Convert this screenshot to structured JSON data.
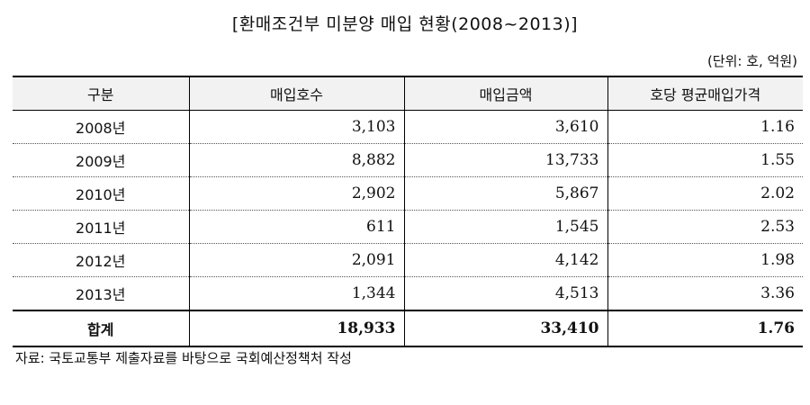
{
  "title": "[환매조건부 미분양 매입 현황(2008~2013)]",
  "unit": "(단위: 호, 억원)",
  "headers": [
    "구분",
    "매입호수",
    "매입금액",
    "호당 평균매입가격"
  ],
  "rows": [
    {
      "year": "2008년",
      "units": "3,103",
      "amount": "3,610",
      "avg": "1.16"
    },
    {
      "year": "2009년",
      "units": "8,882",
      "amount": "13,733",
      "avg": "1.55"
    },
    {
      "year": "2010년",
      "units": "2,902",
      "amount": "5,867",
      "avg": "2.02"
    },
    {
      "year": "2011년",
      "units": "611",
      "amount": "1,545",
      "avg": "2.53"
    },
    {
      "year": "2012년",
      "units": "2,091",
      "amount": "4,142",
      "avg": "1.98"
    },
    {
      "year": "2013년",
      "units": "1,344",
      "amount": "4,513",
      "avg": "3.36"
    }
  ],
  "total": {
    "label": "합계",
    "units": "18,933",
    "amount": "33,410",
    "avg": "1.76"
  },
  "source": "자료: 국토교통부 제출자료를 바탕으로 국회예산정책처 작성"
}
